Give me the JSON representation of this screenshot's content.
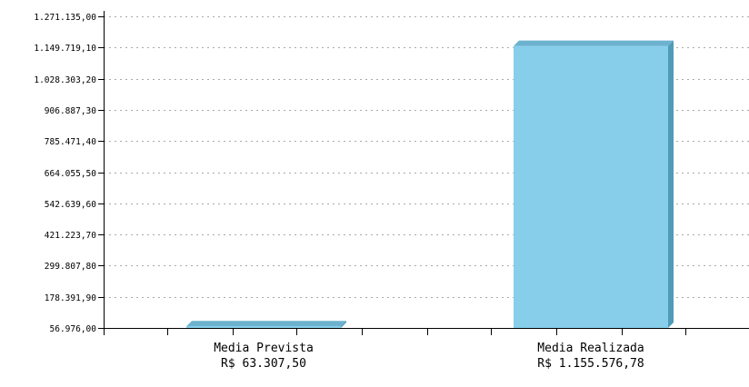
{
  "chart_data": {
    "type": "bar",
    "categories": [
      "Media Prevista",
      "Media Realizada"
    ],
    "category_sublabels": [
      "R$ 63.307,50",
      "R$ 1.155.576,78"
    ],
    "values": [
      63307.5,
      1155576.78
    ],
    "y_ticks": [
      56976.0,
      178391.9,
      299807.8,
      421223.7,
      542639.6,
      664055.5,
      785471.4,
      906887.3,
      1028303.2,
      1149719.1,
      1271135.0
    ],
    "y_tick_labels": [
      "56.976,00",
      "178.391,90",
      "299.807,80",
      "421.223,70",
      "542.639,60",
      "664.055,50",
      "785.471,40",
      "906.887,30",
      "1.028.303,20",
      "1.149.719,10",
      "1.271.135,00"
    ],
    "ylim": [
      56976.0,
      1271135.0
    ],
    "grid": true,
    "title": "",
    "xlabel": "",
    "ylabel": "",
    "colors": {
      "bar_face": "#87ceeb",
      "bar_top": "#6cb2cf",
      "bar_side": "#4f9bb8",
      "grid": "#aaaaaa",
      "axis": "#000000"
    }
  }
}
